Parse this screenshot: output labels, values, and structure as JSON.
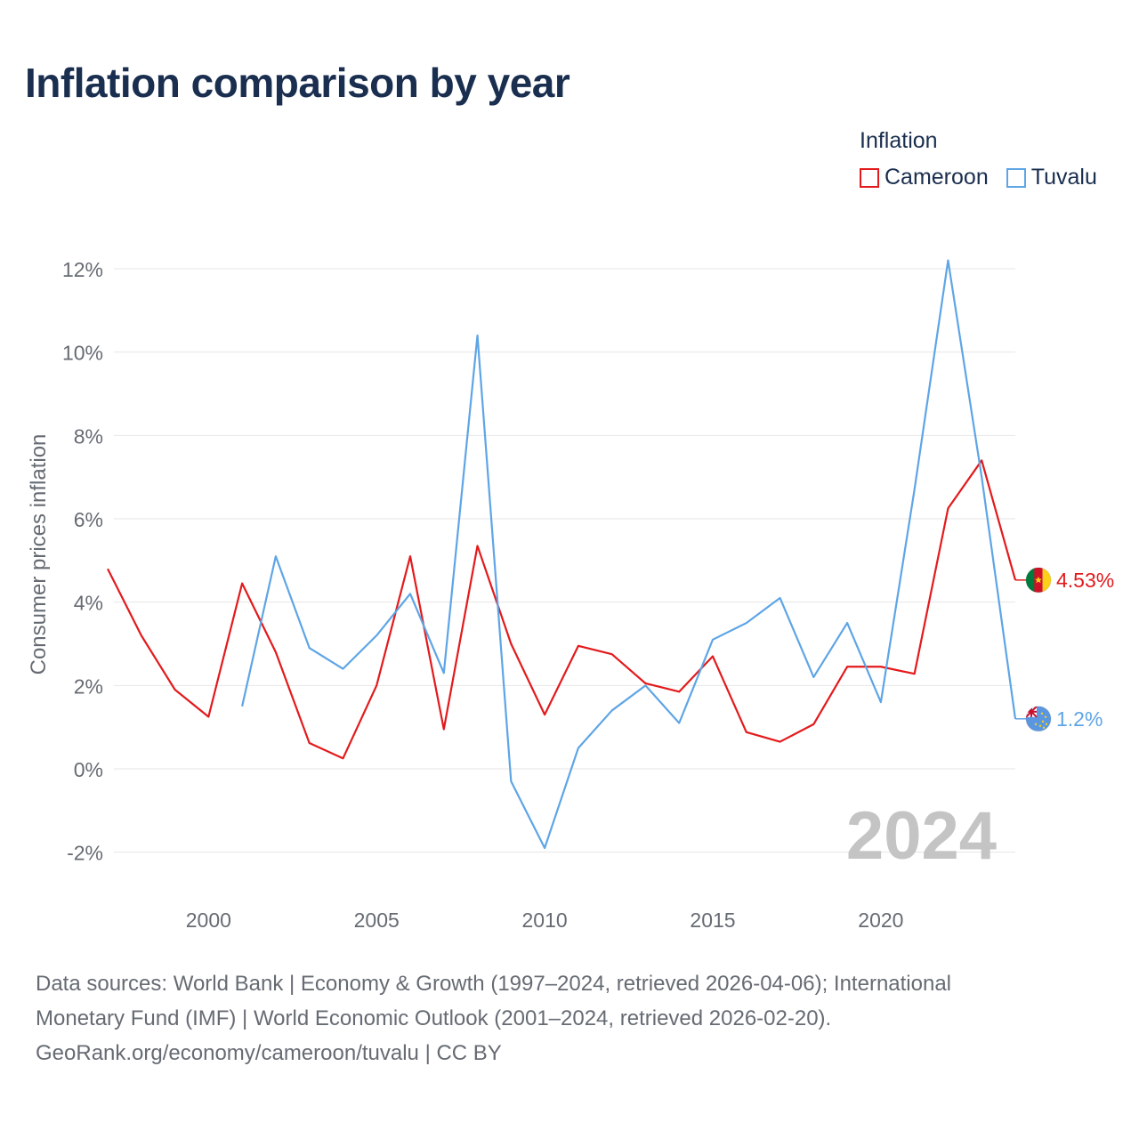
{
  "chart_data": {
    "type": "line",
    "title": "Inflation comparison by year",
    "ylabel": "Consumer prices inflation",
    "xlabel": "",
    "legend_title": "Inflation",
    "year_watermark": "2024",
    "xlim": [
      1997,
      2024
    ],
    "ylim": [
      -3,
      12.5
    ],
    "x_ticks": [
      2000,
      2005,
      2010,
      2015,
      2020
    ],
    "y_ticks": [
      -2,
      0,
      2,
      4,
      6,
      8,
      10,
      12
    ],
    "y_tick_labels": [
      "-2%",
      "0%",
      "2%",
      "4%",
      "6%",
      "8%",
      "10%",
      "12%"
    ],
    "series": [
      {
        "name": "Cameroon",
        "color": "#e31a1c",
        "end_label": "4.53%",
        "flag_icon": "cameroon-flag-icon",
        "x": [
          1997,
          1998,
          1999,
          2000,
          2001,
          2002,
          2003,
          2004,
          2005,
          2006,
          2007,
          2008,
          2009,
          2010,
          2011,
          2012,
          2013,
          2014,
          2015,
          2016,
          2017,
          2018,
          2019,
          2020,
          2021,
          2022,
          2023,
          2024
        ],
        "values": [
          4.8,
          3.2,
          1.9,
          1.25,
          4.45,
          2.8,
          0.62,
          0.25,
          2.0,
          5.1,
          0.95,
          5.35,
          3.0,
          1.3,
          2.95,
          2.75,
          2.05,
          1.85,
          2.7,
          0.88,
          0.65,
          1.07,
          2.45,
          2.45,
          2.28,
          6.25,
          7.4,
          4.53
        ]
      },
      {
        "name": "Tuvalu",
        "color": "#5ea5e6",
        "end_label": "1.2%",
        "flag_icon": "tuvalu-flag-icon",
        "x": [
          2001,
          2002,
          2003,
          2004,
          2005,
          2006,
          2007,
          2008,
          2009,
          2010,
          2011,
          2012,
          2013,
          2014,
          2015,
          2016,
          2017,
          2018,
          2019,
          2020,
          2021,
          2022,
          2023,
          2024
        ],
        "values": [
          1.5,
          5.1,
          2.9,
          2.4,
          3.2,
          4.2,
          2.3,
          10.4,
          -0.3,
          -1.9,
          0.5,
          1.4,
          2.0,
          1.1,
          3.1,
          3.5,
          4.1,
          2.2,
          3.5,
          1.6,
          6.7,
          12.2,
          7.0,
          1.2
        ]
      }
    ]
  },
  "footer": {
    "line1": "Data sources: World Bank | Economy & Growth (1997–2024, retrieved 2026-04-06); International",
    "line2": "Monetary Fund (IMF) | World Economic Outlook (2001–2024, retrieved 2026-02-20).",
    "line3": "GeoRank.org/economy/cameroon/tuvalu | CC BY"
  }
}
